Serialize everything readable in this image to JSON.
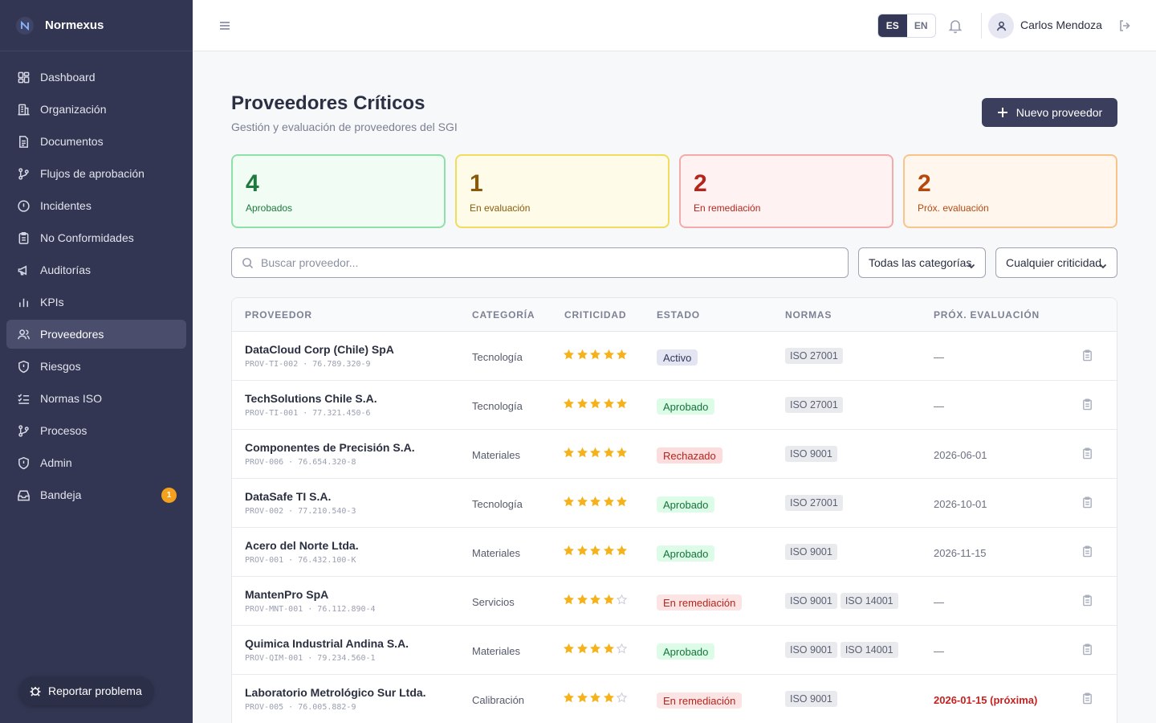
{
  "app": {
    "name": "Normexus"
  },
  "sidebar": {
    "items": [
      {
        "label": "Dashboard",
        "icon": "dashboard-icon"
      },
      {
        "label": "Organización",
        "icon": "building-icon"
      },
      {
        "label": "Documentos",
        "icon": "document-icon"
      },
      {
        "label": "Flujos de aprobación",
        "icon": "git-branch-icon"
      },
      {
        "label": "Incidentes",
        "icon": "alert-circle-icon"
      },
      {
        "label": "No Conformidades",
        "icon": "clipboard-icon"
      },
      {
        "label": "Auditorías",
        "icon": "megaphone-icon"
      },
      {
        "label": "KPIs",
        "icon": "bar-chart-icon"
      },
      {
        "label": "Proveedores",
        "icon": "users-icon",
        "active": true
      },
      {
        "label": "Riesgos",
        "icon": "shield-alert-icon"
      },
      {
        "label": "Normas ISO",
        "icon": "list-checks-icon"
      },
      {
        "label": "Procesos",
        "icon": "git-branch-icon"
      },
      {
        "label": "Admin",
        "icon": "shield-icon"
      },
      {
        "label": "Bandeja",
        "icon": "inbox-icon",
        "badge": "1"
      }
    ],
    "report_label": "Reportar problema"
  },
  "topbar": {
    "lang_es": "ES",
    "lang_en": "EN",
    "active_lang": "ES",
    "user_name": "Carlos Mendoza"
  },
  "page": {
    "title": "Proveedores Críticos",
    "subtitle": "Gestión y evaluación de proveedores del SGI",
    "new_button": "Nuevo proveedor"
  },
  "stats": [
    {
      "value": "4",
      "label": "Aprobados",
      "color": "#1d7a3c"
    },
    {
      "value": "1",
      "label": "En evaluación",
      "color": "#8a5a0b"
    },
    {
      "value": "2",
      "label": "En remediación",
      "color": "#b3261e"
    },
    {
      "value": "2",
      "label": "Próx. evaluación",
      "color": "#b6480f"
    }
  ],
  "filters": {
    "search_placeholder": "Buscar proveedor...",
    "category_value": "Todas las categorías",
    "criticality_value": "Cualquier criticidad"
  },
  "table": {
    "headers": [
      "PROVEEDOR",
      "CATEGORÍA",
      "CRITICIDAD",
      "ESTADO",
      "NORMAS",
      "PRÓX. EVALUACIÓN"
    ],
    "rows": [
      {
        "name": "DataCloud Corp (Chile) SpA",
        "code": "PROV-TI-002 · 76.789.320-9",
        "category": "Tecnología",
        "criticality": 5,
        "status": "Activo",
        "status_kind": "activo",
        "norms": [
          "ISO 27001"
        ],
        "next_eval": "—"
      },
      {
        "name": "TechSolutions Chile S.A.",
        "code": "PROV-TI-001 · 77.321.450-6",
        "category": "Tecnología",
        "criticality": 5,
        "status": "Aprobado",
        "status_kind": "aprobado",
        "norms": [
          "ISO 27001"
        ],
        "next_eval": "—"
      },
      {
        "name": "Componentes de Precisión S.A.",
        "code": "PROV-006 · 76.654.320-8",
        "category": "Materiales",
        "criticality": 5,
        "status": "Rechazado",
        "status_kind": "rechazado",
        "norms": [
          "ISO 9001"
        ],
        "next_eval": "2026-06-01"
      },
      {
        "name": "DataSafe TI S.A.",
        "code": "PROV-002 · 77.210.540-3",
        "category": "Tecnología",
        "criticality": 5,
        "status": "Aprobado",
        "status_kind": "aprobado",
        "norms": [
          "ISO 27001"
        ],
        "next_eval": "2026-10-01"
      },
      {
        "name": "Acero del Norte Ltda.",
        "code": "PROV-001 · 76.432.100-K",
        "category": "Materiales",
        "criticality": 5,
        "status": "Aprobado",
        "status_kind": "aprobado",
        "norms": [
          "ISO 9001"
        ],
        "next_eval": "2026-11-15"
      },
      {
        "name": "MantenPro SpA",
        "code": "PROV-MNT-001 · 76.112.890-4",
        "category": "Servicios",
        "criticality": 4,
        "status": "En remediación",
        "status_kind": "remed",
        "norms": [
          "ISO 9001",
          "ISO 14001"
        ],
        "next_eval": "—"
      },
      {
        "name": "Quimica Industrial Andina S.A.",
        "code": "PROV-QIM-001 · 79.234.560-1",
        "category": "Materiales",
        "criticality": 4,
        "status": "Aprobado",
        "status_kind": "aprobado",
        "norms": [
          "ISO 9001",
          "ISO 14001"
        ],
        "next_eval": "—"
      },
      {
        "name": "Laboratorio Metrológico Sur Ltda.",
        "code": "PROV-005 · 76.005.882-9",
        "category": "Calibración",
        "criticality": 4,
        "status": "En remediación",
        "status_kind": "remed",
        "norms": [
          "ISO 9001"
        ],
        "next_eval": "2026-01-15 (próxima)",
        "eval_soon": true
      }
    ]
  }
}
